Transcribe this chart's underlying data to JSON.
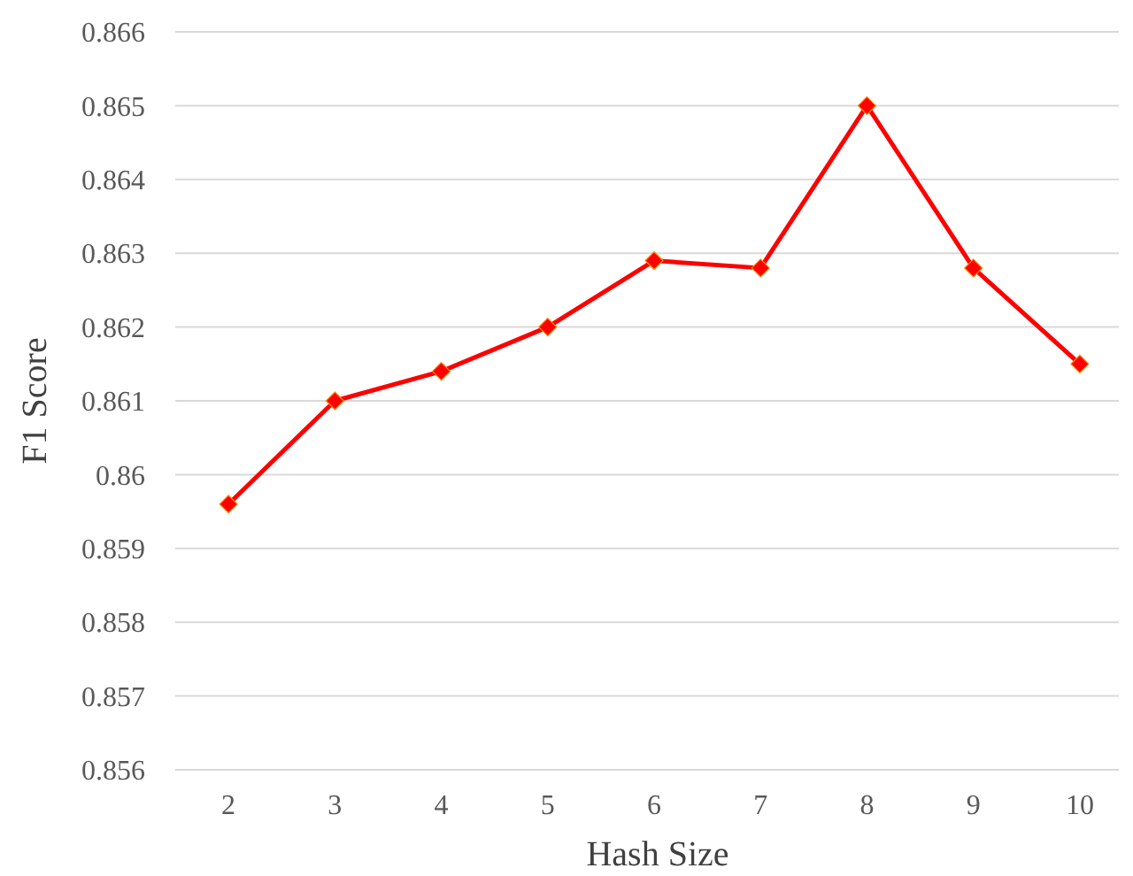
{
  "chart_data": {
    "type": "line",
    "xlabel": "Hash Size",
    "ylabel": "F1 Score",
    "categories": [
      "2",
      "3",
      "4",
      "5",
      "6",
      "7",
      "8",
      "9",
      "10"
    ],
    "series": [
      {
        "color": "#ff0000",
        "values": [
          0.8596,
          0.861,
          0.8614,
          0.862,
          0.8629,
          0.8628,
          0.865,
          0.8628,
          0.8615
        ]
      }
    ],
    "ylim": [
      0.856,
      0.866
    ],
    "yticks": [
      0.856,
      0.857,
      0.858,
      0.859,
      {
        "value": 0.86,
        "label": "0.86"
      },
      0.861,
      0.862,
      0.863,
      0.864,
      0.865,
      0.866
    ],
    "grid": "y",
    "marker": "diamond",
    "line_style": "solid"
  }
}
